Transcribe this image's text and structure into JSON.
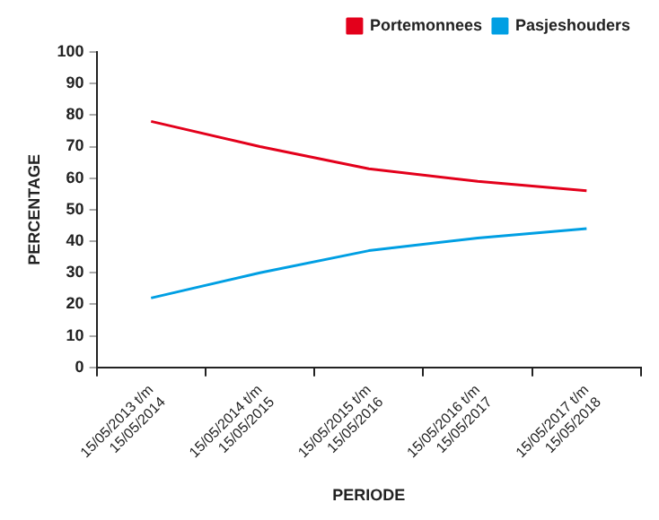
{
  "chart_data": {
    "type": "line",
    "xlabel": "PERIODE",
    "ylabel": "PERCENTAGE",
    "categories": [
      "15/05/2013 t/m\n15/05/2014",
      "15/05/2014 t/m\n15/05/2015",
      "15/05/2015 t/m\n15/05/2016",
      "15/05/2016 t/m\n15/05/2017",
      "15/05/2017 t/m\n15/05/2018"
    ],
    "series": [
      {
        "name": "Portemonnees",
        "color": "#e3001b",
        "values": [
          78,
          70,
          63,
          59,
          56
        ]
      },
      {
        "name": "Pasjeshouders",
        "color": "#009fe3",
        "values": [
          22,
          30,
          37,
          41,
          44
        ]
      }
    ],
    "ylim": [
      0,
      100
    ],
    "yticks": [
      0,
      10,
      20,
      30,
      40,
      50,
      60,
      70,
      80,
      90,
      100
    ],
    "legend": "top right",
    "marker": "none",
    "line_style": "solid"
  }
}
